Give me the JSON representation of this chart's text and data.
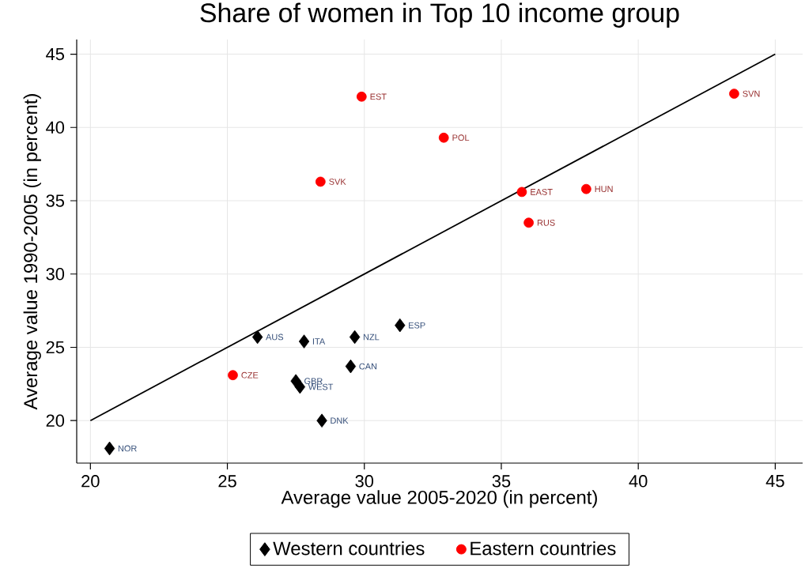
{
  "chart_data": {
    "type": "scatter",
    "title": "Share of women in Top 10 income group",
    "xlabel": "Average value 2005-2020 (in percent)",
    "ylabel": "Average value 1990-2005 (in percent)",
    "xlim": [
      19.5,
      46
    ],
    "ylim": [
      17.1,
      46
    ],
    "xticks": [
      20,
      25,
      30,
      35,
      40,
      45
    ],
    "yticks": [
      20,
      25,
      30,
      35,
      40,
      45
    ],
    "grid": true,
    "legend": "bottom",
    "series": [
      {
        "name": "Western countries",
        "color": "#000000",
        "marker": "diamond",
        "x": [
          26.1,
          27.8,
          29.65,
          31.3,
          29.5,
          27.5,
          27.65,
          28.45,
          20.7
        ],
        "values": [
          25.7,
          25.4,
          25.7,
          26.5,
          23.7,
          22.7,
          22.3,
          20.0,
          18.1
        ],
        "value_labels": [
          "AUS",
          "ITA",
          "NZL",
          "ESP",
          "CAN",
          "GBR",
          "WEST",
          "DNK",
          "NOR"
        ]
      },
      {
        "name": "Eastern countries",
        "color": "#ff0000",
        "marker": "circle",
        "x": [
          29.9,
          32.9,
          28.4,
          35.75,
          38.1,
          36.0,
          43.5,
          25.2
        ],
        "values": [
          42.1,
          39.3,
          36.3,
          35.6,
          35.8,
          33.5,
          42.3,
          23.1
        ],
        "value_labels": [
          "EST",
          "POL",
          "SVK",
          "EAST",
          "HUN",
          "RUS",
          "SVN",
          "CZE"
        ]
      },
      {
        "type": "line",
        "color": "#000000",
        "x": [
          20,
          45
        ],
        "values": [
          20,
          45
        ]
      }
    ]
  }
}
